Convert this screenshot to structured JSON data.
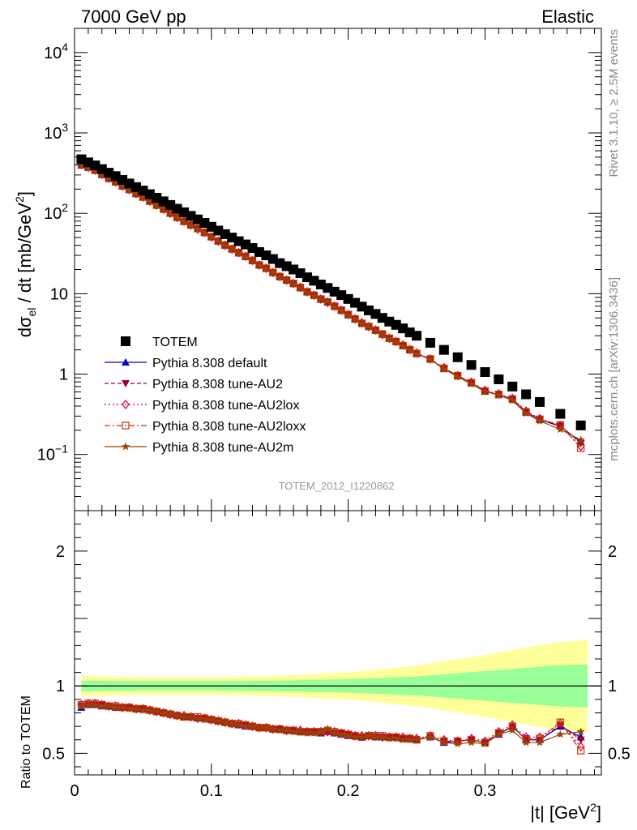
{
  "header": {
    "left": "7000 GeV pp",
    "right": "Elastic"
  },
  "side_labels": {
    "rivet": "Rivet 3.1.10, ≥ 2.5M events",
    "mcplots": "mcplots.cern.ch [arXiv:1306.3436]"
  },
  "analysis_id": "TOTEM_2012_I1220862",
  "colors": {
    "data": "#000000",
    "band_outer": "#ffff99",
    "band_inner": "#99ff99",
    "default": "#0000cc",
    "au2": "#990033",
    "au2lox": "#cc0033",
    "au2loxx": "#cc3300",
    "au2m": "#994400"
  },
  "chart_data": [
    {
      "type": "scatter",
      "panel": "main",
      "yscale": "log",
      "ylabel_main": "dσ",
      "ylabel_sub": "el",
      "ylabel_rest": " / dt [mb/GeV",
      "ylabel_sup": "2",
      "ylabel_end": "]",
      "xlim": [
        0,
        0.385
      ],
      "ylim": [
        0.02,
        20000
      ],
      "yticks": [
        {
          "value": 10000,
          "base": "10",
          "exp": "4"
        },
        {
          "value": 1000,
          "base": "10",
          "exp": "3"
        },
        {
          "value": 100,
          "base": "10",
          "exp": "2"
        },
        {
          "value": 10,
          "base": "10",
          "exp": ""
        },
        {
          "value": 1,
          "base": "1",
          "exp": ""
        },
        {
          "value": 0.1,
          "base": "10",
          "exp": "−1"
        }
      ],
      "legend_position": "lower-left",
      "x": [
        0.005,
        0.01,
        0.015,
        0.02,
        0.025,
        0.03,
        0.035,
        0.04,
        0.045,
        0.05,
        0.055,
        0.06,
        0.065,
        0.07,
        0.075,
        0.08,
        0.085,
        0.09,
        0.095,
        0.1,
        0.105,
        0.11,
        0.115,
        0.12,
        0.125,
        0.13,
        0.135,
        0.14,
        0.145,
        0.15,
        0.155,
        0.16,
        0.165,
        0.17,
        0.175,
        0.18,
        0.185,
        0.19,
        0.195,
        0.2,
        0.205,
        0.21,
        0.215,
        0.22,
        0.225,
        0.23,
        0.235,
        0.24,
        0.245,
        0.25,
        0.26,
        0.27,
        0.28,
        0.29,
        0.3,
        0.31,
        0.32,
        0.33,
        0.34,
        0.355,
        0.37
      ],
      "series": [
        {
          "name": "TOTEM",
          "key": "data",
          "marker": "square",
          "y": [
            470,
            430,
            395,
            355,
            320,
            290,
            260,
            235,
            212,
            192,
            173,
            156,
            141,
            127,
            114,
            103,
            93,
            84,
            76,
            68,
            61,
            55,
            50,
            45,
            41,
            37,
            33,
            30,
            27,
            24,
            22,
            20,
            18,
            16,
            14.5,
            13,
            11.8,
            10.6,
            9.6,
            8.6,
            7.7,
            6.9,
            6.2,
            5.6,
            5.0,
            4.5,
            4.1,
            3.7,
            3.3,
            3.0,
            2.45,
            2.0,
            1.62,
            1.3,
            1.06,
            0.86,
            0.7,
            0.56,
            0.45,
            0.32,
            0.23
          ]
        },
        {
          "name": "Pythia 8.308 default",
          "key": "default",
          "marker": "triangle-up",
          "dash": "",
          "ratio": [
            0.84,
            0.86,
            0.86,
            0.85,
            0.85,
            0.84,
            0.84,
            0.84,
            0.83,
            0.83,
            0.82,
            0.81,
            0.8,
            0.79,
            0.78,
            0.77,
            0.77,
            0.76,
            0.76,
            0.75,
            0.74,
            0.73,
            0.72,
            0.71,
            0.7,
            0.7,
            0.69,
            0.69,
            0.68,
            0.68,
            0.67,
            0.67,
            0.66,
            0.66,
            0.66,
            0.65,
            0.66,
            0.65,
            0.64,
            0.63,
            0.63,
            0.62,
            0.63,
            0.62,
            0.62,
            0.62,
            0.62,
            0.61,
            0.61,
            0.6,
            0.62,
            0.58,
            0.59,
            0.6,
            0.58,
            0.64,
            0.7,
            0.6,
            0.6,
            0.7,
            0.62
          ]
        },
        {
          "name": "Pythia 8.308 tune-AU2",
          "key": "au2",
          "marker": "triangle-down",
          "dash": "5,3",
          "ratio": [
            0.85,
            0.86,
            0.86,
            0.86,
            0.85,
            0.84,
            0.84,
            0.84,
            0.83,
            0.83,
            0.82,
            0.81,
            0.8,
            0.79,
            0.78,
            0.77,
            0.77,
            0.76,
            0.76,
            0.75,
            0.74,
            0.73,
            0.72,
            0.71,
            0.71,
            0.7,
            0.69,
            0.69,
            0.68,
            0.68,
            0.67,
            0.67,
            0.66,
            0.66,
            0.66,
            0.66,
            0.66,
            0.65,
            0.65,
            0.64,
            0.63,
            0.62,
            0.63,
            0.62,
            0.62,
            0.62,
            0.62,
            0.61,
            0.61,
            0.6,
            0.62,
            0.59,
            0.59,
            0.6,
            0.58,
            0.65,
            0.69,
            0.61,
            0.6,
            0.71,
            0.6
          ]
        },
        {
          "name": "Pythia 8.308 tune-AU2lox",
          "key": "au2lox",
          "marker": "diamond-open",
          "dash": "2,3",
          "ratio": [
            0.86,
            0.87,
            0.87,
            0.86,
            0.85,
            0.85,
            0.84,
            0.84,
            0.83,
            0.83,
            0.82,
            0.81,
            0.8,
            0.79,
            0.78,
            0.78,
            0.77,
            0.76,
            0.76,
            0.75,
            0.74,
            0.73,
            0.72,
            0.72,
            0.71,
            0.7,
            0.69,
            0.69,
            0.68,
            0.68,
            0.67,
            0.67,
            0.67,
            0.66,
            0.66,
            0.66,
            0.66,
            0.66,
            0.65,
            0.64,
            0.63,
            0.63,
            0.63,
            0.63,
            0.62,
            0.62,
            0.62,
            0.62,
            0.61,
            0.61,
            0.63,
            0.6,
            0.59,
            0.61,
            0.59,
            0.66,
            0.71,
            0.62,
            0.62,
            0.72,
            0.55
          ]
        },
        {
          "name": "Pythia 8.308 tune-AU2loxx",
          "key": "au2loxx",
          "marker": "square-open",
          "dash": "7,3,2,3",
          "ratio": [
            0.86,
            0.87,
            0.87,
            0.86,
            0.85,
            0.85,
            0.84,
            0.84,
            0.83,
            0.83,
            0.82,
            0.81,
            0.8,
            0.79,
            0.78,
            0.77,
            0.77,
            0.77,
            0.76,
            0.75,
            0.74,
            0.73,
            0.72,
            0.72,
            0.71,
            0.7,
            0.69,
            0.69,
            0.68,
            0.68,
            0.67,
            0.67,
            0.66,
            0.66,
            0.66,
            0.66,
            0.67,
            0.66,
            0.65,
            0.64,
            0.63,
            0.62,
            0.63,
            0.63,
            0.63,
            0.62,
            0.62,
            0.61,
            0.61,
            0.6,
            0.63,
            0.59,
            0.59,
            0.6,
            0.58,
            0.65,
            0.7,
            0.6,
            0.61,
            0.73,
            0.52
          ]
        },
        {
          "name": "Pythia 8.308 tune-AU2m",
          "key": "au2m",
          "marker": "star",
          "dash": "",
          "ratio": [
            0.85,
            0.86,
            0.86,
            0.85,
            0.85,
            0.84,
            0.84,
            0.83,
            0.83,
            0.82,
            0.82,
            0.81,
            0.8,
            0.79,
            0.78,
            0.77,
            0.77,
            0.76,
            0.75,
            0.75,
            0.74,
            0.73,
            0.72,
            0.71,
            0.7,
            0.7,
            0.69,
            0.69,
            0.68,
            0.67,
            0.67,
            0.66,
            0.66,
            0.65,
            0.65,
            0.66,
            0.68,
            0.65,
            0.64,
            0.63,
            0.62,
            0.62,
            0.63,
            0.62,
            0.62,
            0.61,
            0.61,
            0.6,
            0.6,
            0.6,
            0.62,
            0.58,
            0.57,
            0.58,
            0.57,
            0.64,
            0.67,
            0.58,
            0.58,
            0.64,
            0.66
          ]
        }
      ]
    },
    {
      "type": "line",
      "panel": "ratio",
      "ylabel": "Ratio to TOTEM",
      "xlabel_main": "|t| [GeV",
      "xlabel_sup": "2",
      "xlabel_end": "]",
      "xlim": [
        0,
        0.385
      ],
      "ylim": [
        0.34,
        2.3
      ],
      "xticks": [
        {
          "value": 0,
          "label": "0"
        },
        {
          "value": 0.1,
          "label": "0.1"
        },
        {
          "value": 0.2,
          "label": "0.2"
        },
        {
          "value": 0.3,
          "label": "0.3"
        }
      ],
      "yticks": [
        {
          "value": 0.5,
          "label": "0.5"
        },
        {
          "value": 1,
          "label": "1"
        },
        {
          "value": 2,
          "label": "2"
        }
      ],
      "band": {
        "x": [
          0.005,
          0.05,
          0.1,
          0.15,
          0.2,
          0.25,
          0.3,
          0.35,
          0.375
        ],
        "inner_half_width": [
          0.04,
          0.035,
          0.035,
          0.04,
          0.05,
          0.07,
          0.11,
          0.15,
          0.16
        ],
        "outer_half_width": [
          0.075,
          0.065,
          0.065,
          0.075,
          0.1,
          0.15,
          0.23,
          0.32,
          0.34
        ]
      }
    }
  ]
}
